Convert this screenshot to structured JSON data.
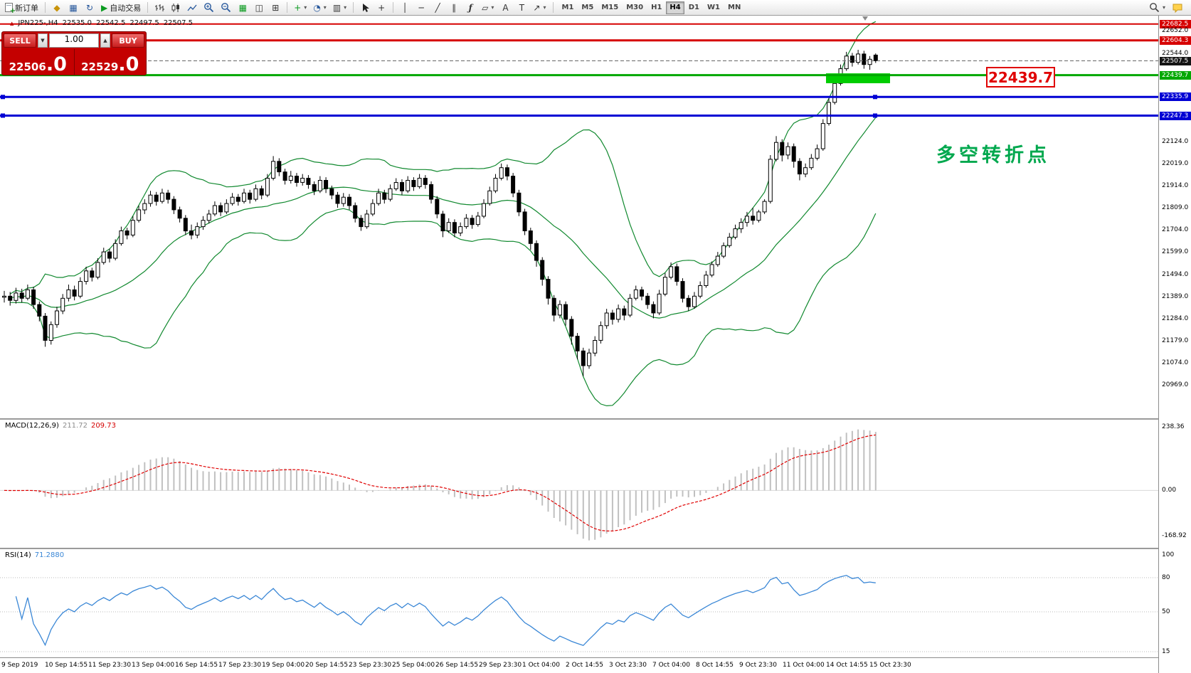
{
  "toolbar": {
    "new_order_label": "新订单",
    "autotrade_label": "自动交易",
    "timeframes": [
      "M1",
      "M5",
      "M15",
      "M30",
      "H1",
      "H4",
      "D1",
      "W1",
      "MN"
    ],
    "active_timeframe": "H4",
    "icons": {
      "depth_of_market": "◆",
      "market_watch": "▦",
      "refresh": "↻",
      "autotrade_play": "▶",
      "tile_windows": "▦",
      "arrange_a": "◫",
      "arrange_b": "⊞",
      "indicators_add": "+",
      "periods": "◔",
      "templates": "▥",
      "crosshair": "+",
      "vertical_line": "│",
      "horizontal_line": "─",
      "trendline": "╱",
      "channel": "∥",
      "fibonacci": "ƒ",
      "shapes": "▱",
      "text": "A",
      "text_label": "T",
      "arrows": "↗",
      "dropdown": "▾"
    }
  },
  "symbol_info": {
    "symbol": "JPN225-,H4",
    "open": "22535.0",
    "high": "22542.5",
    "low": "22497.5",
    "close": "22507.5"
  },
  "trade_panel": {
    "sell_label": "SELL",
    "buy_label": "BUY",
    "volume": "1.00",
    "sell_price": "22506",
    "sell_price_dec": ".0",
    "buy_price": "22529",
    "buy_price_dec": ".0"
  },
  "annotations": {
    "price_label": "22439.7",
    "turning_point_text": "多空转折点"
  },
  "chart": {
    "price_range": [
      20810,
      22722
    ],
    "current_price": 22507.5,
    "colors": {
      "bands": "#11892f",
      "zone": "#00cd00"
    },
    "lines": [
      {
        "price": 22682.5,
        "color": "#d60000",
        "width": 2
      },
      {
        "price": 22604.3,
        "color": "#d60000",
        "width": 3
      },
      {
        "price": 22439.7,
        "color": "#00a800",
        "width": 3
      },
      {
        "price": 22335.9,
        "color": "#0000d4",
        "width": 3,
        "handles": true
      },
      {
        "price": 22247.3,
        "color": "#0000d4",
        "width": 3,
        "handles": true
      }
    ],
    "scale_labels": [
      {
        "text": "22682.5",
        "type": "line-red"
      },
      {
        "text": "22652.0",
        "type": "tick"
      },
      {
        "text": "22604.3",
        "type": "line-red"
      },
      {
        "text": "22544.0",
        "type": "tick"
      },
      {
        "text": "22507.5",
        "type": "current"
      },
      {
        "text": "22439.7",
        "type": "line-green"
      },
      {
        "text": "22335.9",
        "type": "line-blue"
      },
      {
        "text": "22247.3",
        "type": "line-blue"
      },
      {
        "text": "22124.0",
        "type": "tick"
      },
      {
        "text": "22019.0",
        "type": "tick"
      },
      {
        "text": "21914.0",
        "type": "tick"
      },
      {
        "text": "21809.0",
        "type": "tick"
      },
      {
        "text": "21704.0",
        "type": "tick"
      },
      {
        "text": "21599.0",
        "type": "tick"
      },
      {
        "text": "21494.0",
        "type": "tick"
      },
      {
        "text": "21389.0",
        "type": "tick"
      },
      {
        "text": "21284.0",
        "type": "tick"
      },
      {
        "text": "21179.0",
        "type": "tick"
      },
      {
        "text": "21074.0",
        "type": "tick"
      },
      {
        "text": "20969.0",
        "type": "tick"
      }
    ],
    "bollinger": {
      "period": 20,
      "deviations": 2
    },
    "zone": {
      "from_candle": 141,
      "width": 90,
      "price_top": 22448,
      "price_bottom": 22401
    },
    "candles": [
      [
        21385,
        21415,
        21360,
        21390
      ],
      [
        21390,
        21410,
        21345,
        21370
      ],
      [
        21370,
        21430,
        21355,
        21405
      ],
      [
        21405,
        21425,
        21360,
        21380
      ],
      [
        21380,
        21445,
        21370,
        21420
      ],
      [
        21420,
        21435,
        21330,
        21350
      ],
      [
        21350,
        21365,
        21270,
        21295
      ],
      [
        21295,
        21310,
        21150,
        21180
      ],
      [
        21180,
        21270,
        21160,
        21255
      ],
      [
        21255,
        21340,
        21240,
        21320
      ],
      [
        21320,
        21400,
        21305,
        21380
      ],
      [
        21380,
        21445,
        21365,
        21420
      ],
      [
        21420,
        21440,
        21370,
        21390
      ],
      [
        21390,
        21480,
        21380,
        21460
      ],
      [
        21460,
        21530,
        21445,
        21510
      ],
      [
        21510,
        21525,
        21460,
        21480
      ],
      [
        21480,
        21570,
        21470,
        21550
      ],
      [
        21550,
        21620,
        21540,
        21600
      ],
      [
        21600,
        21615,
        21550,
        21570
      ],
      [
        21570,
        21660,
        21560,
        21640
      ],
      [
        21640,
        21720,
        21630,
        21700
      ],
      [
        21700,
        21715,
        21660,
        21680
      ],
      [
        21680,
        21770,
        21670,
        21750
      ],
      [
        21750,
        21820,
        21740,
        21800
      ],
      [
        21800,
        21850,
        21780,
        21830
      ],
      [
        21830,
        21890,
        21815,
        21870
      ],
      [
        21870,
        21885,
        21820,
        21840
      ],
      [
        21840,
        21900,
        21830,
        21880
      ],
      [
        21880,
        21895,
        21830,
        21850
      ],
      [
        21850,
        21865,
        21780,
        21800
      ],
      [
        21800,
        21815,
        21740,
        21760
      ],
      [
        21760,
        21775,
        21680,
        21700
      ],
      [
        21700,
        21730,
        21660,
        21680
      ],
      [
        21680,
        21740,
        21665,
        21720
      ],
      [
        21720,
        21770,
        21705,
        21750
      ],
      [
        21750,
        21800,
        21735,
        21780
      ],
      [
        21780,
        21840,
        21770,
        21820
      ],
      [
        21820,
        21835,
        21770,
        21790
      ],
      [
        21790,
        21850,
        21780,
        21830
      ],
      [
        21830,
        21880,
        21820,
        21860
      ],
      [
        21860,
        21875,
        21820,
        21840
      ],
      [
        21840,
        21900,
        21830,
        21880
      ],
      [
        21880,
        21895,
        21830,
        21850
      ],
      [
        21850,
        21920,
        21840,
        21900
      ],
      [
        21900,
        21915,
        21850,
        21870
      ],
      [
        21870,
        21970,
        21860,
        21950
      ],
      [
        21950,
        22055,
        21940,
        22030
      ],
      [
        22030,
        22045,
        21960,
        21980
      ],
      [
        21980,
        21995,
        21920,
        21940
      ],
      [
        21940,
        21985,
        21925,
        21960
      ],
      [
        21960,
        21975,
        21910,
        21930
      ],
      [
        21930,
        21970,
        21915,
        21950
      ],
      [
        21950,
        21965,
        21900,
        21920
      ],
      [
        21920,
        21935,
        21870,
        21890
      ],
      [
        21890,
        21960,
        21880,
        21940
      ],
      [
        21940,
        21955,
        21880,
        21900
      ],
      [
        21900,
        21915,
        21850,
        21870
      ],
      [
        21870,
        21885,
        21810,
        21830
      ],
      [
        21830,
        21880,
        21815,
        21860
      ],
      [
        21860,
        21875,
        21800,
        21820
      ],
      [
        21820,
        21835,
        21740,
        21760
      ],
      [
        21760,
        21775,
        21700,
        21720
      ],
      [
        21720,
        21800,
        21710,
        21780
      ],
      [
        21780,
        21850,
        21770,
        21830
      ],
      [
        21830,
        21900,
        21820,
        21880
      ],
      [
        21880,
        21895,
        21830,
        21850
      ],
      [
        21850,
        21920,
        21840,
        21900
      ],
      [
        21900,
        21950,
        21890,
        21930
      ],
      [
        21930,
        21945,
        21870,
        21890
      ],
      [
        21890,
        21960,
        21880,
        21940
      ],
      [
        21940,
        21955,
        21890,
        21910
      ],
      [
        21910,
        21970,
        21900,
        21950
      ],
      [
        21950,
        21965,
        21900,
        21920
      ],
      [
        21920,
        21935,
        21830,
        21850
      ],
      [
        21850,
        21865,
        21760,
        21780
      ],
      [
        21780,
        21795,
        21670,
        21700
      ],
      [
        21700,
        21760,
        21690,
        21740
      ],
      [
        21740,
        21755,
        21670,
        21690
      ],
      [
        21690,
        21740,
        21675,
        21720
      ],
      [
        21720,
        21780,
        21710,
        21760
      ],
      [
        21760,
        21775,
        21710,
        21730
      ],
      [
        21730,
        21790,
        21720,
        21770
      ],
      [
        21770,
        21850,
        21760,
        21830
      ],
      [
        21830,
        21910,
        21820,
        21890
      ],
      [
        21890,
        21970,
        21880,
        21950
      ],
      [
        21950,
        22020,
        21940,
        22000
      ],
      [
        22000,
        22015,
        21940,
        21960
      ],
      [
        21960,
        21975,
        21860,
        21880
      ],
      [
        21880,
        21895,
        21770,
        21790
      ],
      [
        21790,
        21805,
        21680,
        21700
      ],
      [
        21700,
        21715,
        21610,
        21640
      ],
      [
        21640,
        21655,
        21530,
        21560
      ],
      [
        21560,
        21575,
        21440,
        21470
      ],
      [
        21470,
        21485,
        21350,
        21380
      ],
      [
        21380,
        21395,
        21270,
        21300
      ],
      [
        21300,
        21370,
        21285,
        21350
      ],
      [
        21350,
        21365,
        21250,
        21280
      ],
      [
        21280,
        21295,
        21160,
        21200
      ],
      [
        21200,
        21215,
        21090,
        21130
      ],
      [
        21130,
        21145,
        21010,
        21060
      ],
      [
        21060,
        21140,
        21045,
        21120
      ],
      [
        21120,
        21200,
        21105,
        21180
      ],
      [
        21180,
        21270,
        21165,
        21250
      ],
      [
        21250,
        21330,
        21235,
        21310
      ],
      [
        21310,
        21325,
        21255,
        21280
      ],
      [
        21280,
        21350,
        21265,
        21330
      ],
      [
        21330,
        21345,
        21275,
        21300
      ],
      [
        21300,
        21400,
        21290,
        21380
      ],
      [
        21380,
        21440,
        21370,
        21420
      ],
      [
        21420,
        21435,
        21370,
        21390
      ],
      [
        21390,
        21405,
        21330,
        21350
      ],
      [
        21350,
        21365,
        21285,
        21310
      ],
      [
        21310,
        21420,
        21300,
        21400
      ],
      [
        21400,
        21500,
        21390,
        21480
      ],
      [
        21480,
        21550,
        21470,
        21530
      ],
      [
        21530,
        21545,
        21440,
        21460
      ],
      [
        21460,
        21475,
        21360,
        21380
      ],
      [
        21380,
        21395,
        21320,
        21340
      ],
      [
        21340,
        21410,
        21330,
        21390
      ],
      [
        21390,
        21460,
        21380,
        21440
      ],
      [
        21440,
        21510,
        21430,
        21490
      ],
      [
        21490,
        21555,
        21480,
        21540
      ],
      [
        21540,
        21600,
        21530,
        21580
      ],
      [
        21580,
        21645,
        21570,
        21630
      ],
      [
        21630,
        21690,
        21620,
        21670
      ],
      [
        21670,
        21730,
        21660,
        21710
      ],
      [
        21710,
        21760,
        21690,
        21740
      ],
      [
        21740,
        21790,
        21720,
        21770
      ],
      [
        21770,
        21810,
        21730,
        21750
      ],
      [
        21750,
        21800,
        21740,
        21790
      ],
      [
        21790,
        21850,
        21780,
        21840
      ],
      [
        21840,
        22060,
        21830,
        22040
      ],
      [
        22040,
        22150,
        22030,
        22120
      ],
      [
        22120,
        22135,
        22030,
        22060
      ],
      [
        22060,
        22120,
        22040,
        22100
      ],
      [
        22100,
        22115,
        22000,
        22030
      ],
      [
        22030,
        22045,
        21940,
        21970
      ],
      [
        21970,
        22020,
        21955,
        22000
      ],
      [
        22000,
        22065,
        21990,
        22045
      ],
      [
        22045,
        22110,
        22035,
        22090
      ],
      [
        22090,
        22230,
        22080,
        22210
      ],
      [
        22210,
        22330,
        22200,
        22310
      ],
      [
        22310,
        22420,
        22300,
        22400
      ],
      [
        22400,
        22490,
        22390,
        22470
      ],
      [
        22470,
        22550,
        22460,
        22530
      ],
      [
        22530,
        22545,
        22480,
        22500
      ],
      [
        22500,
        22560,
        22490,
        22540
      ],
      [
        22540,
        22555,
        22470,
        22490
      ],
      [
        22490,
        22530,
        22465,
        22515
      ],
      [
        22535,
        22542.5,
        22497.5,
        22507.5
      ]
    ]
  },
  "macd": {
    "name_label": "MACD(12,26,9)",
    "value_main": "211.72",
    "value_signal": "209.73",
    "params": {
      "fast": 12,
      "slow": 26,
      "signal": 9
    },
    "ticks": [
      "238.36",
      "0.00",
      "-168.92"
    ],
    "range": [
      -215,
      265
    ]
  },
  "rsi": {
    "name_label": "RSI(14)",
    "value": "71.2880",
    "period": 14,
    "ticks": [
      "100",
      "80",
      "50",
      "15"
    ],
    "levels": [
      80,
      50,
      15
    ],
    "range": [
      10,
      105
    ]
  },
  "time_axis": [
    "9 Sep 2019",
    "10 Sep 14:55",
    "11 Sep 23:30",
    "13 Sep 04:00",
    "16 Sep 14:55",
    "17 Sep 23:30",
    "19 Sep 04:00",
    "20 Sep 14:55",
    "23 Sep 23:30",
    "25 Sep 04:00",
    "26 Sep 14:55",
    "29 Sep 23:30",
    "1 Oct 04:00",
    "2 Oct 14:55",
    "3 Oct 23:30",
    "7 Oct 04:00",
    "8 Oct 14:55",
    "9 Oct 23:30",
    "11 Oct 04:00",
    "14 Oct 14:55",
    "15 Oct 23:30"
  ]
}
